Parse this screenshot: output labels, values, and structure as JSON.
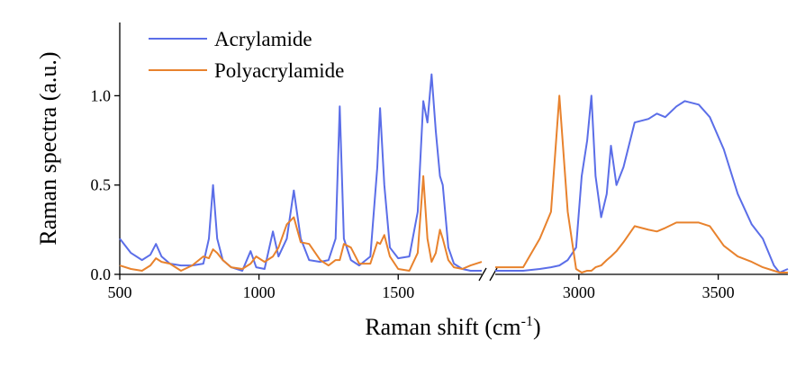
{
  "chart_data": {
    "type": "line",
    "xlabel": [
      "Raman shift (cm",
      "-1",
      ")"
    ],
    "ylabel": "Raman spectra (a.u.)",
    "xlim": [
      500,
      3750
    ],
    "xbreak": [
      1800,
      2700
    ],
    "xticks": [
      500,
      1000,
      1500,
      3000,
      3500
    ],
    "ylim": [
      0,
      1.41
    ],
    "yticks": [
      {
        "value": 0,
        "label": "0.0"
      },
      {
        "value": 0.5,
        "label": "0.5"
      },
      {
        "value": 1,
        "label": "1.0"
      }
    ],
    "legend": "upper left",
    "x": [
      500,
      540,
      580,
      610,
      630,
      650,
      680,
      720,
      760,
      800,
      820,
      835,
      850,
      870,
      900,
      940,
      970,
      990,
      1020,
      1050,
      1070,
      1100,
      1125,
      1150,
      1180,
      1220,
      1250,
      1275,
      1290,
      1305,
      1330,
      1360,
      1400,
      1425,
      1435,
      1450,
      1470,
      1500,
      1540,
      1570,
      1590,
      1605,
      1620,
      1635,
      1650,
      1660,
      1680,
      1700,
      1730,
      1760,
      1800,
      2700,
      2800,
      2860,
      2900,
      2930,
      2960,
      2990,
      3010,
      3030,
      3045,
      3060,
      3080,
      3100,
      3115,
      3135,
      3160,
      3200,
      3250,
      3280,
      3310,
      3350,
      3380,
      3430,
      3470,
      3520,
      3570,
      3620,
      3660,
      3700,
      3720,
      3750
    ],
    "series": [
      {
        "name": "Acrylamide",
        "color": "#5b6ee8",
        "values": [
          0.2,
          0.12,
          0.08,
          0.11,
          0.17,
          0.1,
          0.06,
          0.05,
          0.05,
          0.06,
          0.2,
          0.5,
          0.2,
          0.08,
          0.04,
          0.02,
          0.13,
          0.04,
          0.03,
          0.24,
          0.1,
          0.2,
          0.47,
          0.2,
          0.08,
          0.07,
          0.08,
          0.2,
          0.94,
          0.2,
          0.08,
          0.05,
          0.1,
          0.6,
          0.93,
          0.5,
          0.15,
          0.09,
          0.1,
          0.35,
          0.97,
          0.85,
          1.12,
          0.8,
          0.55,
          0.5,
          0.15,
          0.06,
          0.03,
          0.02,
          0.02,
          0.02,
          0.02,
          0.03,
          0.04,
          0.05,
          0.08,
          0.15,
          0.55,
          0.75,
          1.0,
          0.55,
          0.32,
          0.45,
          0.72,
          0.5,
          0.6,
          0.85,
          0.87,
          0.9,
          0.88,
          0.94,
          0.97,
          0.95,
          0.88,
          0.7,
          0.45,
          0.28,
          0.2,
          0.05,
          0.01,
          0.03
        ]
      },
      {
        "name": "Polyacrylamide",
        "color": "#e8822d",
        "values": [
          0.05,
          0.03,
          0.02,
          0.05,
          0.09,
          0.07,
          0.06,
          0.02,
          0.05,
          0.1,
          0.09,
          0.14,
          0.12,
          0.08,
          0.04,
          0.03,
          0.06,
          0.1,
          0.07,
          0.1,
          0.15,
          0.28,
          0.32,
          0.18,
          0.17,
          0.08,
          0.05,
          0.08,
          0.08,
          0.17,
          0.15,
          0.06,
          0.06,
          0.18,
          0.17,
          0.22,
          0.1,
          0.03,
          0.02,
          0.12,
          0.55,
          0.2,
          0.07,
          0.12,
          0.25,
          0.2,
          0.08,
          0.04,
          0.03,
          0.05,
          0.07,
          0.04,
          0.04,
          0.2,
          0.35,
          1.0,
          0.35,
          0.03,
          0.01,
          0.02,
          0.02,
          0.04,
          0.05,
          0.08,
          0.1,
          0.13,
          0.18,
          0.27,
          0.25,
          0.24,
          0.26,
          0.29,
          0.29,
          0.29,
          0.27,
          0.16,
          0.1,
          0.07,
          0.04,
          0.02,
          0.01,
          0.01
        ]
      }
    ]
  }
}
